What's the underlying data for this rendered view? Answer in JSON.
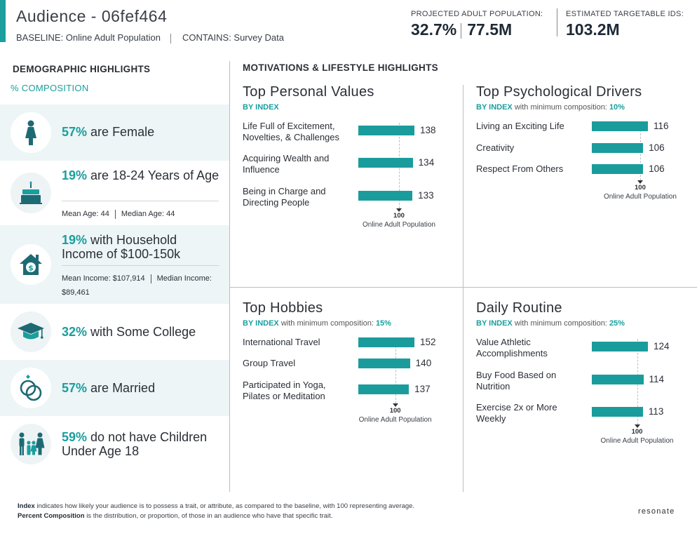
{
  "header": {
    "title": "Audience - 06fef464",
    "baseline": "BASELINE: Online Adult Population",
    "contains": "CONTAINS: Survey Data",
    "projected_label": "PROJECTED ADULT POPULATION:",
    "projected_pct": "32.7%",
    "projected_count": "77.5M",
    "targetable_label": "ESTIMATED TARGETABLE IDS:",
    "targetable_count": "103.2M"
  },
  "demographics": {
    "title": "DEMOGRAPHIC HIGHLIGHTS",
    "subtitle": "% COMPOSITION",
    "items": [
      {
        "icon": "female-icon",
        "pct": "57%",
        "text": "are Female"
      },
      {
        "icon": "birthday-cake-icon",
        "pct": "19%",
        "text": "are 18-24 Years of Age",
        "sub1": "Mean Age: 44",
        "sub2": "Median Age: 44"
      },
      {
        "icon": "house-dollar-icon",
        "pct": "19%",
        "text": "with Household Income of $100-150k",
        "sub1": "Mean Income: $107,914",
        "sub2": "Median Income: $89,461"
      },
      {
        "icon": "graduation-cap-icon",
        "pct": "32%",
        "text": "with Some College"
      },
      {
        "icon": "wedding-rings-icon",
        "pct": "57%",
        "text": "are Married"
      },
      {
        "icon": "family-icon",
        "pct": "59%",
        "text": "do not have Children Under Age 18"
      }
    ]
  },
  "motivations": {
    "title": "MOTIVATIONS & LIFESTYLE HIGHLIGHTS",
    "by_index": "BY INDEX",
    "min_comp_text": "with minimum composition:",
    "baseline_value": "100",
    "baseline_label": "Online Adult Population",
    "panels": {
      "values": {
        "title": "Top Personal Values",
        "min_comp": "",
        "items": [
          {
            "label": "Life Full of Excitement, Novelties, & Challenges",
            "value": 138
          },
          {
            "label": "Acquiring Wealth and Influence",
            "value": 134
          },
          {
            "label": "Being in Charge and Directing People",
            "value": 133
          }
        ]
      },
      "drivers": {
        "title": "Top Psychological Drivers",
        "min_comp": "10%",
        "items": [
          {
            "label": "Living an Exciting Life",
            "value": 116
          },
          {
            "label": "Creativity",
            "value": 106
          },
          {
            "label": "Respect From Others",
            "value": 106
          }
        ]
      },
      "hobbies": {
        "title": "Top Hobbies",
        "min_comp": "15%",
        "items": [
          {
            "label": "International Travel",
            "value": 152
          },
          {
            "label": "Group Travel",
            "value": 140
          },
          {
            "label": "Participated in Yoga, Pilates or Meditation",
            "value": 137
          }
        ]
      },
      "routine": {
        "title": "Daily Routine",
        "min_comp": "25%",
        "items": [
          {
            "label": "Value Athletic Accomplishments",
            "value": 124
          },
          {
            "label": "Buy Food Based on Nutrition",
            "value": 114
          },
          {
            "label": "Exercise 2x or More Weekly",
            "value": 113
          }
        ]
      }
    }
  },
  "footer": {
    "index_term": "Index",
    "index_def": "indicates how likely your audience is to possess a trait, or attribute, as compared to the baseline, with 100 representing average.",
    "comp_term": "Percent Composition",
    "comp_def": "is the distribution, or proportion, of those in an audience who have that specific trait.",
    "logo": "resonate"
  },
  "colors": {
    "accent": "#1a9e9e",
    "bar": "#1b9c9c",
    "shade": "#edf5f6"
  }
}
